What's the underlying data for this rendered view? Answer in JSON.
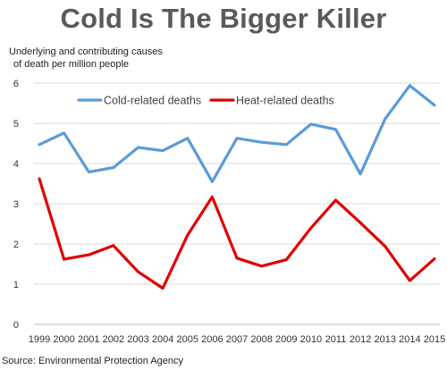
{
  "chart_data": {
    "type": "line",
    "title": "Cold Is The Bigger Killer",
    "ylabel": [
      "Underlying and contributing causes",
      "of death per million people"
    ],
    "xlabel": "",
    "source": "Source: Environmental Protection Agency",
    "x": [
      "1999",
      "2000",
      "2001",
      "2002",
      "2003",
      "2004",
      "2005",
      "2006",
      "2007",
      "2008",
      "2009",
      "2010",
      "2011",
      "2012",
      "2013",
      "2014",
      "2015"
    ],
    "ylim": [
      0,
      6
    ],
    "yticks": [
      "0",
      "1",
      "2",
      "3",
      "4",
      "5",
      "6"
    ],
    "grid": true,
    "legend": "top, inside plot",
    "series": [
      {
        "name": "Cold-related deaths",
        "color": "#5b9bd5",
        "values": [
          4.47,
          4.76,
          3.79,
          3.9,
          4.4,
          4.32,
          4.63,
          3.55,
          4.63,
          4.53,
          4.47,
          4.98,
          4.85,
          3.74,
          5.11,
          5.94,
          5.45
        ]
      },
      {
        "name": "Heat-related deaths",
        "color": "#e00000",
        "values": [
          3.62,
          1.62,
          1.73,
          1.96,
          1.31,
          0.9,
          2.22,
          3.17,
          1.65,
          1.45,
          1.61,
          2.4,
          3.09,
          2.53,
          1.94,
          1.09,
          1.63
        ]
      }
    ]
  }
}
